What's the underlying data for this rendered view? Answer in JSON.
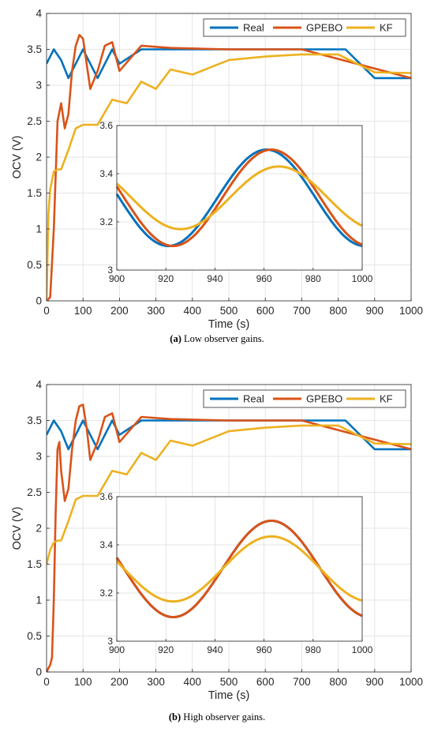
{
  "chart_data": [
    {
      "type": "line",
      "caption_tag": "(a)",
      "caption_text": " Low observer gains.",
      "xlabel": "Time (s)",
      "ylabel": "OCV (V)",
      "xlim": [
        0,
        1000
      ],
      "ylim": [
        0,
        4
      ],
      "xticks": [
        0,
        100,
        200,
        300,
        400,
        500,
        600,
        700,
        800,
        900,
        1000
      ],
      "yticks": [
        0,
        0.5,
        1,
        1.5,
        2,
        2.5,
        3,
        3.5,
        4
      ],
      "grid": true,
      "legend": {
        "position": "top-right",
        "orientation": "horizontal"
      },
      "series": [
        {
          "name": "Real",
          "color": "#0072BD",
          "x": [
            0,
            20,
            40,
            60,
            80,
            100,
            120,
            140,
            160,
            180,
            200,
            260,
            340,
            420,
            500,
            580,
            660,
            740,
            820,
            900,
            1000
          ],
          "y": [
            3.3,
            3.5,
            3.35,
            3.1,
            3.3,
            3.5,
            3.3,
            3.1,
            3.3,
            3.5,
            3.3,
            3.5,
            3.5,
            3.5,
            3.5,
            3.5,
            3.5,
            3.5,
            3.5,
            3.1,
            3.1
          ]
        },
        {
          "name": "GPEBO",
          "color": "#D95319",
          "x": [
            0,
            10,
            20,
            30,
            40,
            50,
            60,
            70,
            80,
            90,
            100,
            110,
            120,
            140,
            160,
            180,
            200,
            260,
            340,
            500,
            700,
            1000
          ],
          "y": [
            0,
            0.05,
            1.0,
            2.5,
            2.75,
            2.4,
            2.6,
            3.2,
            3.55,
            3.7,
            3.65,
            3.3,
            2.95,
            3.2,
            3.55,
            3.6,
            3.2,
            3.55,
            3.52,
            3.5,
            3.5,
            3.1
          ]
        },
        {
          "name": "KF",
          "color": "#EDB120",
          "x": [
            0,
            5,
            10,
            20,
            30,
            40,
            60,
            80,
            100,
            140,
            180,
            220,
            260,
            300,
            340,
            400,
            500,
            600,
            700,
            800,
            900,
            1000
          ],
          "y": [
            0,
            1.2,
            1.55,
            1.8,
            1.83,
            1.83,
            2.1,
            2.4,
            2.45,
            2.45,
            2.8,
            2.75,
            3.05,
            2.95,
            3.22,
            3.15,
            3.35,
            3.4,
            3.43,
            3.43,
            3.18,
            3.17
          ]
        }
      ],
      "inset": {
        "xlim": [
          900,
          1000
        ],
        "ylim": [
          3,
          3.6
        ],
        "xticks": [
          900,
          920,
          940,
          960,
          980,
          1000
        ],
        "yticks": [
          3,
          3.2,
          3.4,
          3.6
        ],
        "series": [
          {
            "name": "Real",
            "color": "#0072BD",
            "mean": 3.3,
            "amp": 0.2,
            "period": 80,
            "peak": 961
          },
          {
            "name": "GPEBO",
            "color": "#D95319",
            "mean": 3.3,
            "amp": 0.2,
            "period": 80,
            "peak": 963
          },
          {
            "name": "KF",
            "color": "#EDB120",
            "mean": 3.3,
            "amp": 0.13,
            "period": 80,
            "peak": 966
          }
        ]
      }
    },
    {
      "type": "line",
      "caption_tag": "(b)",
      "caption_text": " High observer gains.",
      "xlabel": "Time (s)",
      "ylabel": "OCV (V)",
      "xlim": [
        0,
        1000
      ],
      "ylim": [
        0,
        4
      ],
      "xticks": [
        0,
        100,
        200,
        300,
        400,
        500,
        600,
        700,
        800,
        900,
        1000
      ],
      "yticks": [
        0,
        0.5,
        1,
        1.5,
        2,
        2.5,
        3,
        3.5,
        4
      ],
      "grid": true,
      "legend": {
        "position": "top-right",
        "orientation": "horizontal"
      },
      "series": [
        {
          "name": "Real",
          "color": "#0072BD",
          "x": [
            0,
            20,
            40,
            60,
            80,
            100,
            120,
            140,
            160,
            180,
            200,
            260,
            340,
            420,
            500,
            580,
            660,
            740,
            820,
            900,
            1000
          ],
          "y": [
            3.3,
            3.5,
            3.35,
            3.1,
            3.3,
            3.5,
            3.3,
            3.1,
            3.3,
            3.5,
            3.3,
            3.5,
            3.5,
            3.5,
            3.5,
            3.5,
            3.5,
            3.5,
            3.5,
            3.1,
            3.1
          ]
        },
        {
          "name": "GPEBO",
          "color": "#D95319",
          "x": [
            0,
            10,
            15,
            20,
            25,
            30,
            35,
            40,
            50,
            60,
            70,
            80,
            90,
            100,
            110,
            120,
            140,
            160,
            180,
            200,
            260,
            340,
            500,
            700,
            1000
          ],
          "y": [
            0,
            0.1,
            0.2,
            1.0,
            2.2,
            3.1,
            3.2,
            2.8,
            2.38,
            2.55,
            3.1,
            3.5,
            3.7,
            3.72,
            3.4,
            2.95,
            3.2,
            3.55,
            3.6,
            3.2,
            3.55,
            3.52,
            3.5,
            3.5,
            3.1
          ]
        },
        {
          "name": "KF",
          "color": "#EDB120",
          "x": [
            0,
            5,
            10,
            20,
            30,
            40,
            60,
            80,
            100,
            140,
            180,
            220,
            260,
            300,
            340,
            400,
            500,
            600,
            700,
            800,
            900,
            1000
          ],
          "y": [
            1.5,
            1.6,
            1.7,
            1.8,
            1.83,
            1.83,
            2.1,
            2.4,
            2.45,
            2.45,
            2.8,
            2.75,
            3.05,
            2.95,
            3.22,
            3.15,
            3.35,
            3.4,
            3.43,
            3.43,
            3.18,
            3.17
          ]
        }
      ],
      "inset": {
        "xlim": [
          900,
          1000
        ],
        "ylim": [
          3,
          3.6
        ],
        "xticks": [
          900,
          920,
          940,
          960,
          980,
          1000
        ],
        "yticks": [
          3,
          3.2,
          3.4,
          3.6
        ],
        "series": [
          {
            "name": "Real",
            "color": "#0072BD",
            "mean": 3.3,
            "amp": 0.2,
            "period": 80,
            "peak": 963
          },
          {
            "name": "GPEBO",
            "color": "#D95319",
            "mean": 3.3,
            "amp": 0.2,
            "period": 80,
            "peak": 963
          },
          {
            "name": "KF",
            "color": "#EDB120",
            "mean": 3.3,
            "amp": 0.135,
            "period": 80,
            "peak": 963
          }
        ]
      }
    }
  ]
}
